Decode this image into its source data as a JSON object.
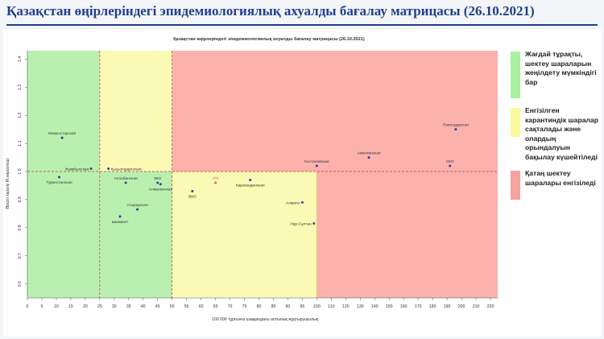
{
  "header": {
    "title": "Қазақстан өңірлеріндегі эпидемиологиялық ахуалды бағалау матрицасы  (26.10.2021)"
  },
  "colors": {
    "green_zone": "#b9f0b0",
    "yellow_zone": "#fafab4",
    "red_zone": "#fbb2ad",
    "title": "#1d3f8c",
    "marker": "#3a3aa8",
    "threshold_line": "#cc3333"
  },
  "chart_data": {
    "type": "scatter",
    "title": "Қазақстан өңірлеріндегі эпидемиологиялық ахуалды бағалау матрицасы  (26.10.2021)",
    "xlabel": "100 000 тұрғынға шаққандағы аптылық жұқтырушылық",
    "ylabel": "Өршіп таралу Rt көрсеткіші",
    "xlim": [
      0,
      225
    ],
    "ylim": [
      0.55,
      1.43
    ],
    "xticks": [
      0,
      5,
      10,
      15,
      20,
      25,
      30,
      35,
      40,
      45,
      50,
      55,
      60,
      65,
      70,
      75,
      80,
      85,
      90,
      95,
      100,
      110,
      120,
      130,
      140,
      150,
      160,
      170,
      180,
      190,
      200,
      210,
      220
    ],
    "yticks": [
      0.6,
      0.7,
      0.8,
      0.9,
      1.0,
      1.1,
      1.2,
      1.3,
      1.4
    ],
    "ytick_labels": [
      "0.6",
      "0.7",
      "0.8",
      "0.9",
      "1.0",
      "1.1",
      "1.2",
      "1.3",
      "1.4"
    ],
    "grid": false,
    "zones": [
      {
        "name": "green",
        "x": [
          0,
          50
        ],
        "y": [
          0.55,
          1.43
        ]
      },
      {
        "name": "yellow",
        "x": [
          25,
          50
        ],
        "y": [
          1.0,
          1.43
        ]
      },
      {
        "name": "yellow",
        "x": [
          50,
          100
        ],
        "y": [
          0.55,
          1.0
        ]
      },
      {
        "name": "red",
        "x": [
          50,
          225
        ],
        "y": [
          1.0,
          1.43
        ]
      },
      {
        "name": "red",
        "x": [
          100,
          225
        ],
        "y": [
          0.55,
          1.0
        ]
      }
    ],
    "thresholds": {
      "x": [
        25,
        50
      ],
      "y": 1.0
    },
    "points": [
      {
        "label": "Маңғыстауская",
        "x": 12,
        "y": 1.12,
        "pos": "above"
      },
      {
        "label": "Жамбылская",
        "x": 22,
        "y": 1.01,
        "pos": "left"
      },
      {
        "label": "Кызылординская",
        "x": 28,
        "y": 1.01,
        "pos": "right"
      },
      {
        "label": "Туркестанская",
        "x": 11,
        "y": 0.98,
        "pos": "below"
      },
      {
        "label": "Актюбинская",
        "x": 34,
        "y": 0.96,
        "pos": "above"
      },
      {
        "label": "ЗКО",
        "x": 45,
        "y": 0.96,
        "pos": "above"
      },
      {
        "label": "Алматинская",
        "x": 46,
        "y": 0.955,
        "pos": "below"
      },
      {
        "label": "ВКО",
        "x": 57,
        "y": 0.93,
        "pos": "below"
      },
      {
        "label": "РП",
        "x": 65,
        "y": 0.96,
        "pos": "above"
      },
      {
        "label": "Карагандинская",
        "x": 77,
        "y": 0.97,
        "pos": "below"
      },
      {
        "label": "Костанайская",
        "x": 100,
        "y": 1.02,
        "pos": "above"
      },
      {
        "label": "Акмолинская",
        "x": 136,
        "y": 1.05,
        "pos": "above"
      },
      {
        "label": "Павлодарская",
        "x": 196,
        "y": 1.15,
        "pos": "above"
      },
      {
        "label": "СКО",
        "x": 192,
        "y": 1.02,
        "pos": "above"
      },
      {
        "label": "Алматы",
        "x": 95,
        "y": 0.89,
        "pos": "left"
      },
      {
        "label": "Нұр-Сұлтан",
        "x": 99,
        "y": 0.815,
        "pos": "left"
      },
      {
        "label": "Атырауская",
        "x": 38,
        "y": 0.865,
        "pos": "above"
      },
      {
        "label": "Шымкент",
        "x": 32,
        "y": 0.84,
        "pos": "below"
      }
    ]
  },
  "legend": [
    {
      "color": "#a9f0a0",
      "text": "Жағдай тұрақты, шектеу шараларын жеңілдету мүмкіндігі бар"
    },
    {
      "color": "#fafa9c",
      "text": "Енгізілген карантиндік шаралар сақталады және олардың орындалуын бақылау күшейтіледі"
    },
    {
      "color": "#f5a39e",
      "text": "Қатаң шектеу шаралары енгізіледі"
    }
  ]
}
